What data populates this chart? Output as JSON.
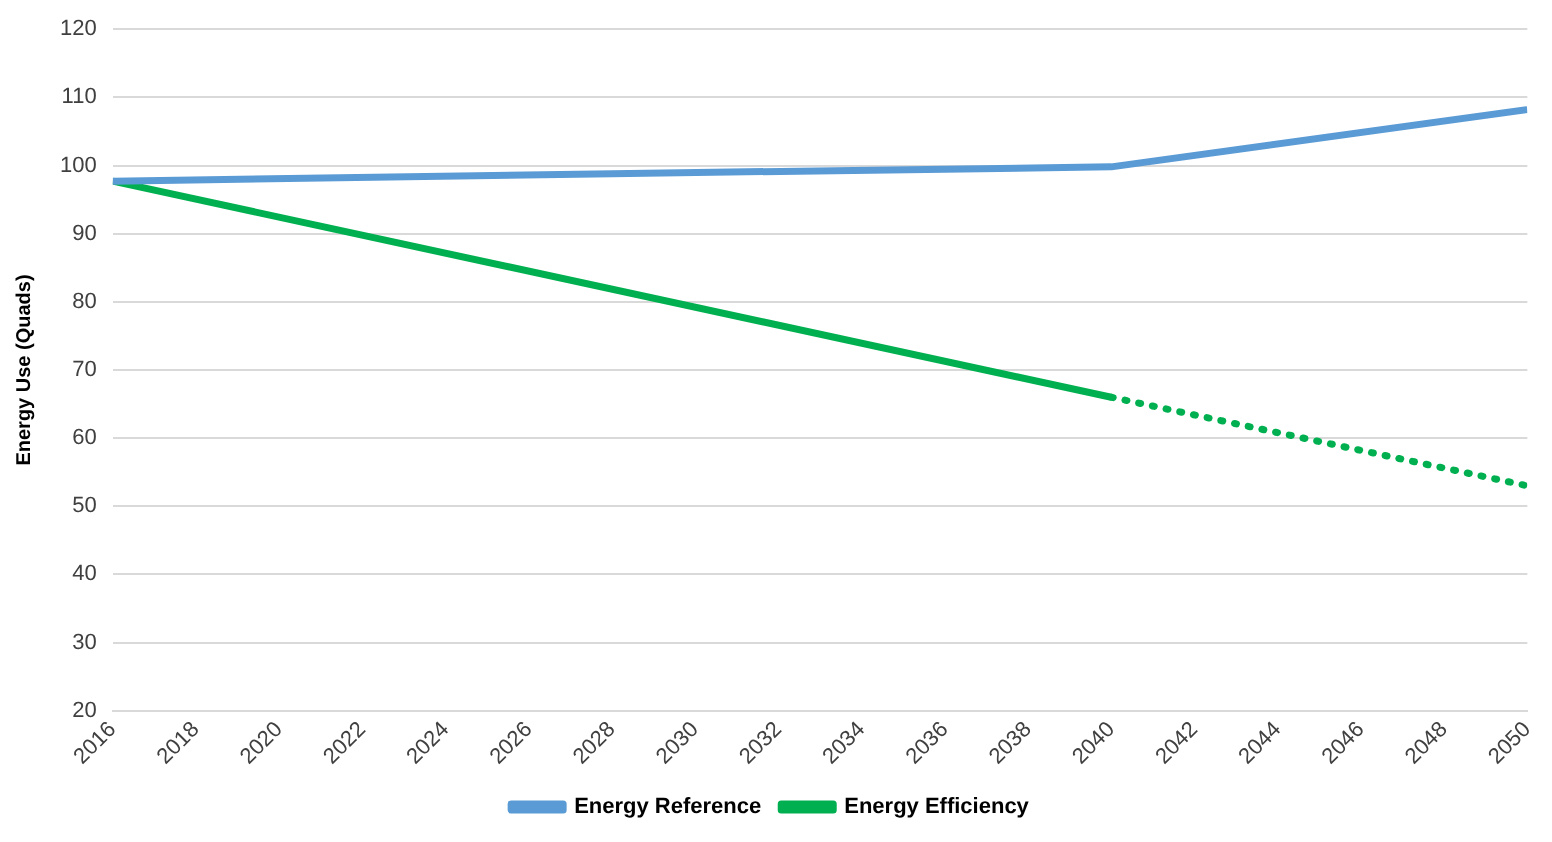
{
  "chart_data": {
    "type": "line",
    "ylabel": "Energy Use (Quads)",
    "xlim": [
      2016,
      2050
    ],
    "xticks": [
      2016,
      2018,
      2020,
      2022,
      2024,
      2026,
      2028,
      2030,
      2032,
      2034,
      2036,
      2038,
      2040,
      2042,
      2044,
      2046,
      2048,
      2050
    ],
    "ylim": [
      20,
      120
    ],
    "yticks": [
      20,
      30,
      40,
      50,
      60,
      70,
      80,
      90,
      100,
      110,
      120
    ],
    "grid": "y",
    "legend": "bottom",
    "marker": "none",
    "series": [
      {
        "name": "Energy Reference",
        "color": "#5b9bd5",
        "line_style": "solid",
        "x": [
          2016,
          2028,
          2040,
          2050
        ],
        "values": [
          97.7,
          98.8,
          99.8,
          108.2
        ]
      },
      {
        "name": "Energy Efficiency",
        "color": "#00b050",
        "line_style": "solid",
        "x": [
          2016,
          2040
        ],
        "values": [
          97.7,
          66
        ]
      },
      {
        "color": "#00b050",
        "line_style": "dotted",
        "x": [
          2040,
          2050
        ],
        "values": [
          66,
          53
        ]
      }
    ]
  }
}
